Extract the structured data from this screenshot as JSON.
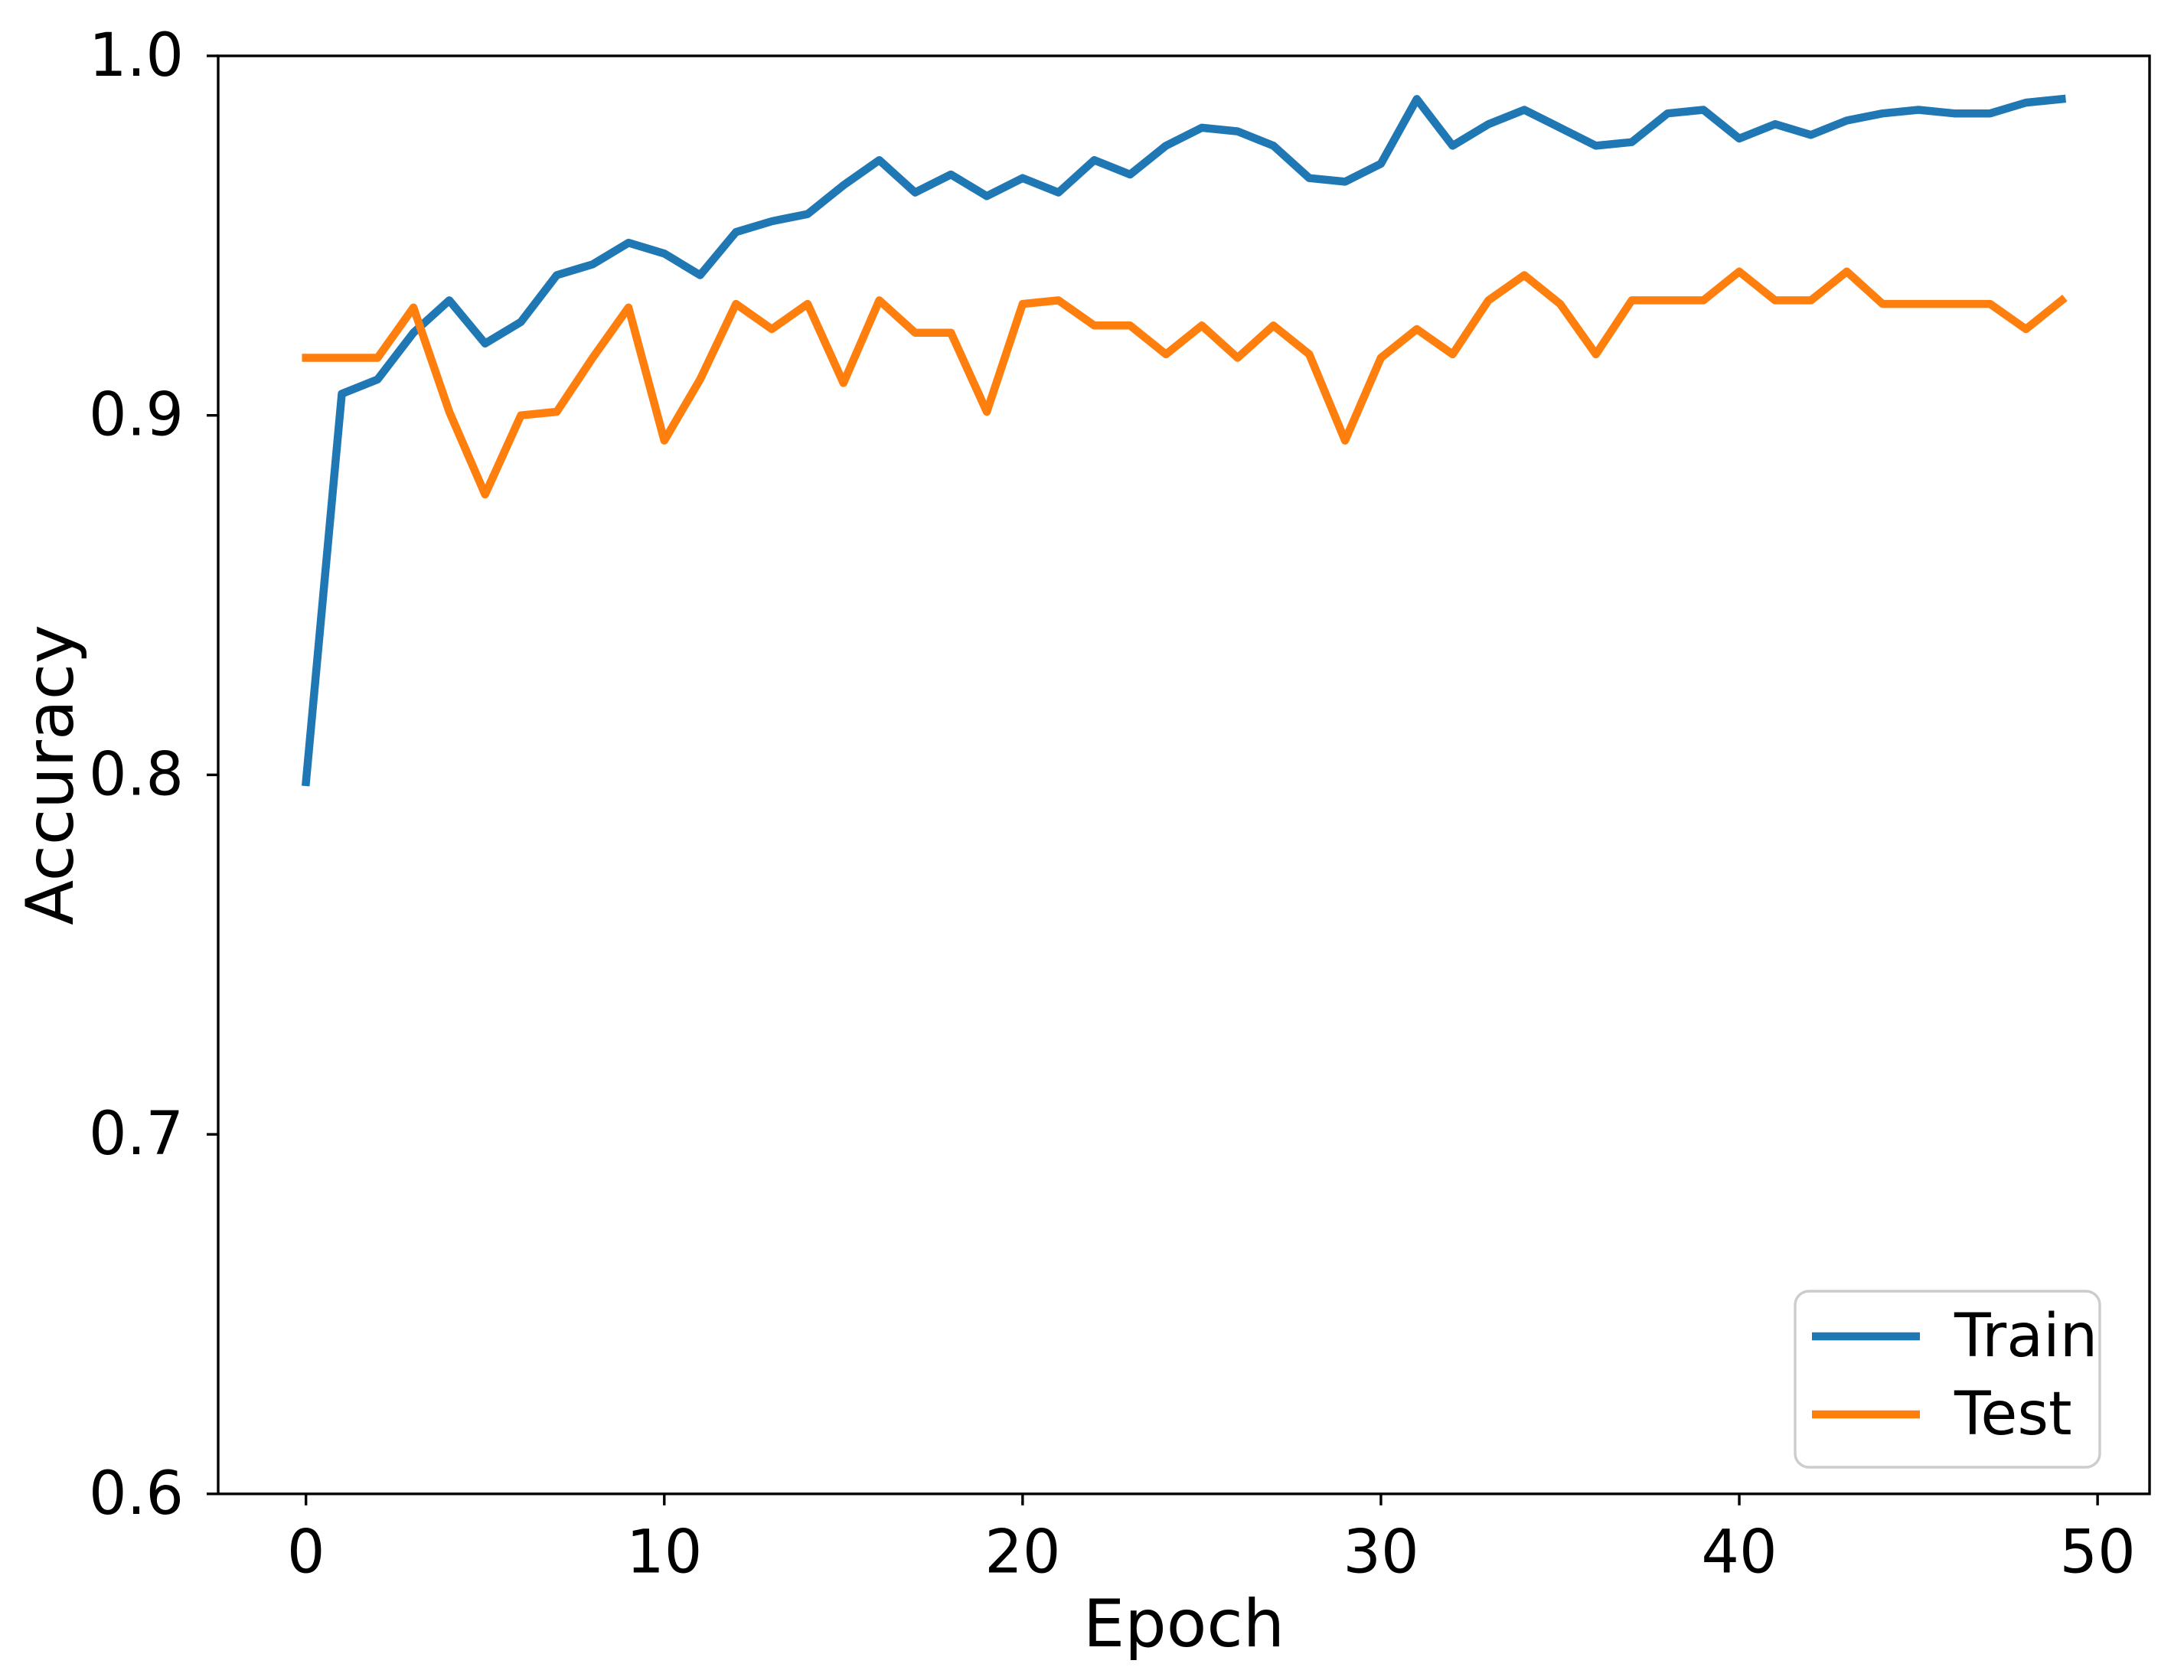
{
  "chart_data": {
    "type": "line",
    "title": "",
    "xlabel": "Epoch",
    "ylabel": "Accuracy",
    "xlim": [
      -2.45,
      51.45
    ],
    "ylim": [
      0.6,
      1.0
    ],
    "xticks": {
      "values": [
        0,
        10,
        20,
        30,
        40,
        50
      ],
      "labels": [
        "0",
        "10",
        "20",
        "30",
        "40",
        "50"
      ]
    },
    "yticks": {
      "values": [
        0.6,
        0.7,
        0.8,
        0.9,
        1.0
      ],
      "labels": [
        "0.6",
        "0.7",
        "0.8",
        "0.9",
        "1.0"
      ]
    },
    "grid": false,
    "legend_position": "lower right",
    "x": [
      0,
      1,
      2,
      3,
      4,
      5,
      6,
      7,
      8,
      9,
      10,
      11,
      12,
      13,
      14,
      15,
      16,
      17,
      18,
      19,
      20,
      21,
      22,
      23,
      24,
      25,
      26,
      27,
      28,
      29,
      30,
      31,
      32,
      33,
      34,
      35,
      36,
      37,
      38,
      39,
      40,
      41,
      42,
      43,
      44,
      45,
      46,
      47,
      48,
      49
    ],
    "series": [
      {
        "name": "Train",
        "color": "#1f77b4",
        "values": [
          0.798,
          0.906,
          0.91,
          0.923,
          0.932,
          0.92,
          0.926,
          0.939,
          0.942,
          0.948,
          0.945,
          0.939,
          0.951,
          0.954,
          0.956,
          0.964,
          0.971,
          0.962,
          0.967,
          0.961,
          0.966,
          0.962,
          0.971,
          0.967,
          0.975,
          0.98,
          0.979,
          0.975,
          0.966,
          0.965,
          0.97,
          0.988,
          0.975,
          0.981,
          0.985,
          0.98,
          0.975,
          0.976,
          0.984,
          0.985,
          0.977,
          0.981,
          0.978,
          0.982,
          0.984,
          0.985,
          0.984,
          0.984,
          0.987,
          0.988
        ]
      },
      {
        "name": "Test",
        "color": "#ff7f0e",
        "values": [
          0.916,
          0.916,
          0.916,
          0.93,
          0.901,
          0.878,
          0.9,
          0.901,
          0.916,
          0.93,
          0.893,
          0.91,
          0.931,
          0.924,
          0.931,
          0.909,
          0.932,
          0.923,
          0.923,
          0.901,
          0.931,
          0.932,
          0.925,
          0.925,
          0.917,
          0.925,
          0.916,
          0.925,
          0.917,
          0.893,
          0.916,
          0.924,
          0.917,
          0.932,
          0.939,
          0.931,
          0.917,
          0.932,
          0.932,
          0.932,
          0.94,
          0.932,
          0.932,
          0.94,
          0.931,
          0.931,
          0.931,
          0.931,
          0.924,
          0.932
        ]
      }
    ]
  },
  "colors": {
    "background": "#ffffff",
    "spine": "#000000",
    "tick": "#000000",
    "legend_border": "#cccccc",
    "legend_background": "#ffffff"
  },
  "legend": {
    "items": [
      {
        "label": "Train",
        "color": "#1f77b4"
      },
      {
        "label": "Test",
        "color": "#ff7f0e"
      }
    ]
  }
}
